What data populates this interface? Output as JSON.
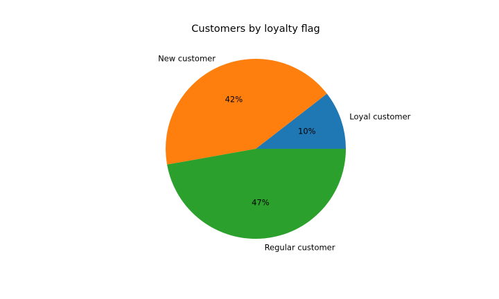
{
  "chart_data": {
    "type": "pie",
    "title": "Customers by loyalty flag",
    "slices": [
      {
        "label": "Loyal customer",
        "value": 10.5,
        "pct_label": "10%",
        "color": "#1f77b4"
      },
      {
        "label": "New customer",
        "value": 42.3,
        "pct_label": "42%",
        "color": "#ff7f0e"
      },
      {
        "label": "Regular customer",
        "value": 47.2,
        "pct_label": "47%",
        "color": "#2ca02c"
      }
    ],
    "start_angle_deg": 0,
    "direction": "counterclockwise"
  }
}
